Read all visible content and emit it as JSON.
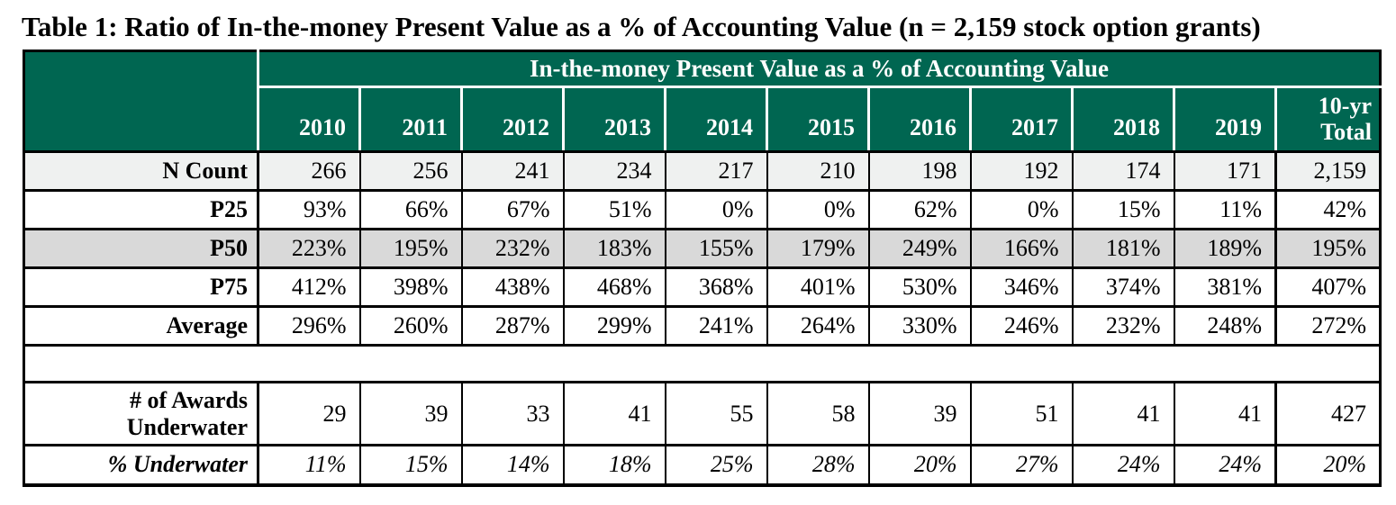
{
  "title": "Table 1: Ratio of In-the-money Present Value as a % of Accounting Value (n = 2,159 stock option grants)",
  "colors": {
    "header_green": "#006651",
    "header_text": "#ffffff",
    "shaded_row_gray": "#d9d9d9",
    "tinted_row_gray": "#eff1f0",
    "border": "#000000"
  },
  "table": {
    "span_header": "In-the-money Present Value as a % of Accounting Value",
    "columns": [
      "2010",
      "2011",
      "2012",
      "2013",
      "2014",
      "2015",
      "2016",
      "2017",
      "2018",
      "2019",
      "10-yr Total"
    ],
    "rows": [
      {
        "label": "N Count",
        "values": [
          "266",
          "256",
          "241",
          "234",
          "217",
          "210",
          "198",
          "192",
          "174",
          "171",
          "2,159"
        ]
      },
      {
        "label": "P25",
        "values": [
          "93%",
          "66%",
          "67%",
          "51%",
          "0%",
          "0%",
          "62%",
          "0%",
          "15%",
          "11%",
          "42%"
        ]
      },
      {
        "label": "P50",
        "values": [
          "223%",
          "195%",
          "232%",
          "183%",
          "155%",
          "179%",
          "249%",
          "166%",
          "181%",
          "189%",
          "195%"
        ]
      },
      {
        "label": "P75",
        "values": [
          "412%",
          "398%",
          "438%",
          "468%",
          "368%",
          "401%",
          "530%",
          "346%",
          "374%",
          "381%",
          "407%"
        ]
      },
      {
        "label": "Average",
        "values": [
          "296%",
          "260%",
          "287%",
          "299%",
          "241%",
          "264%",
          "330%",
          "246%",
          "232%",
          "248%",
          "272%"
        ]
      },
      {
        "label": "# of Awards Underwater",
        "values": [
          "29",
          "39",
          "33",
          "41",
          "55",
          "58",
          "39",
          "51",
          "41",
          "41",
          "427"
        ]
      },
      {
        "label": "% Underwater",
        "values": [
          "11%",
          "15%",
          "14%",
          "18%",
          "25%",
          "28%",
          "20%",
          "27%",
          "24%",
          "24%",
          "20%"
        ]
      }
    ]
  }
}
